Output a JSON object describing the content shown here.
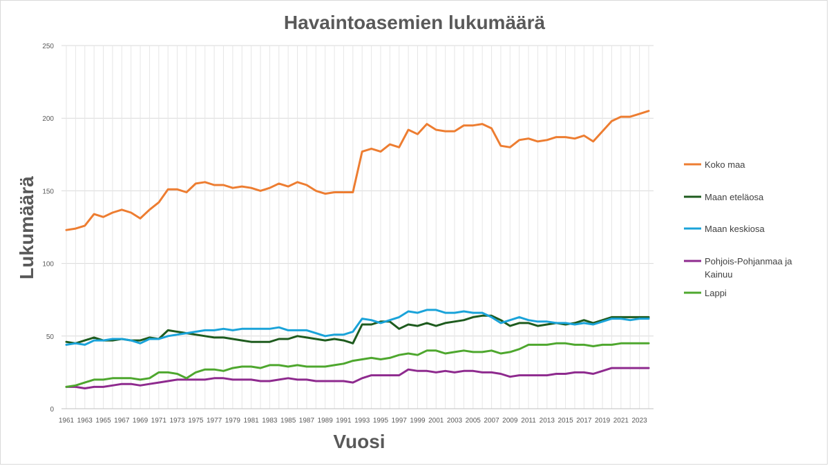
{
  "chart_data": {
    "type": "line",
    "title": "Havaintoasemien lukumäärä",
    "xlabel": "Vuosi",
    "ylabel": "Lukumäärä",
    "ylim": [
      0,
      250
    ],
    "yticks": [
      0,
      50,
      100,
      150,
      200,
      250
    ],
    "xlim": [
      1961,
      2024
    ],
    "xticks": [
      1961,
      1963,
      1965,
      1967,
      1969,
      1971,
      1973,
      1975,
      1977,
      1979,
      1981,
      1983,
      1985,
      1987,
      1989,
      1991,
      1993,
      1995,
      1997,
      1999,
      2001,
      2003,
      2005,
      2007,
      2009,
      2011,
      2013,
      2015,
      2017,
      2019,
      2021,
      2023
    ],
    "grid": true,
    "legend_position": "right",
    "series": [
      {
        "name": "Koko maa",
        "color": "#ED7D31",
        "values": [
          123,
          124,
          126,
          134,
          132,
          135,
          137,
          135,
          131,
          137,
          142,
          151,
          151,
          149,
          155,
          156,
          154,
          154,
          152,
          153,
          152,
          150,
          152,
          155,
          153,
          156,
          154,
          150,
          148,
          149,
          149,
          149,
          177,
          179,
          177,
          182,
          180,
          192,
          189,
          196,
          192,
          191,
          191,
          195,
          195,
          196,
          193,
          181,
          180,
          185,
          186,
          184,
          185,
          187,
          187,
          186,
          188,
          184,
          191,
          198,
          201,
          201,
          203,
          205
        ]
      },
      {
        "name": "Maan eteläosa",
        "color": "#1E5B1E",
        "values": [
          46,
          45,
          47,
          49,
          47,
          47,
          48,
          47,
          47,
          49,
          48,
          54,
          53,
          52,
          51,
          50,
          49,
          49,
          48,
          47,
          46,
          46,
          46,
          48,
          48,
          50,
          49,
          48,
          47,
          48,
          47,
          45,
          58,
          58,
          60,
          60,
          55,
          58,
          57,
          59,
          57,
          59,
          60,
          61,
          63,
          64,
          64,
          61,
          57,
          59,
          59,
          57,
          58,
          59,
          58,
          59,
          61,
          59,
          61,
          63,
          63,
          63,
          63,
          63
        ]
      },
      {
        "name": "Maan keskiosa",
        "color": "#1AA3D9",
        "values": [
          44,
          45,
          44,
          47,
          47,
          48,
          48,
          47,
          45,
          48,
          48,
          50,
          51,
          52,
          53,
          54,
          54,
          55,
          54,
          55,
          55,
          55,
          55,
          56,
          54,
          54,
          54,
          52,
          50,
          51,
          51,
          53,
          62,
          61,
          59,
          61,
          63,
          67,
          66,
          68,
          68,
          66,
          66,
          67,
          66,
          66,
          63,
          59,
          61,
          63,
          61,
          60,
          60,
          59,
          59,
          58,
          59,
          58,
          60,
          62,
          62,
          61,
          62,
          62
        ]
      },
      {
        "name": "Pohjois-Pohjanmaa ja Kainuu",
        "color": "#8E2A8E",
        "values": [
          15,
          15,
          14,
          15,
          15,
          16,
          17,
          17,
          16,
          17,
          18,
          19,
          20,
          20,
          20,
          20,
          21,
          21,
          20,
          20,
          20,
          19,
          19,
          20,
          21,
          20,
          20,
          19,
          19,
          19,
          19,
          18,
          21,
          23,
          23,
          23,
          23,
          27,
          26,
          26,
          25,
          26,
          25,
          26,
          26,
          25,
          25,
          24,
          22,
          23,
          23,
          23,
          23,
          24,
          24,
          25,
          25,
          24,
          26,
          28,
          28,
          28,
          28,
          28
        ]
      },
      {
        "name": "Lappi",
        "color": "#4EA72E",
        "values": [
          15,
          16,
          18,
          20,
          20,
          21,
          21,
          21,
          20,
          21,
          25,
          25,
          24,
          21,
          25,
          27,
          27,
          26,
          28,
          29,
          29,
          28,
          30,
          30,
          29,
          30,
          29,
          29,
          29,
          30,
          31,
          33,
          34,
          35,
          34,
          35,
          37,
          38,
          37,
          40,
          40,
          38,
          39,
          40,
          39,
          39,
          40,
          38,
          39,
          41,
          44,
          44,
          44,
          45,
          45,
          44,
          44,
          43,
          44,
          44,
          45,
          45,
          45,
          45
        ]
      }
    ]
  }
}
